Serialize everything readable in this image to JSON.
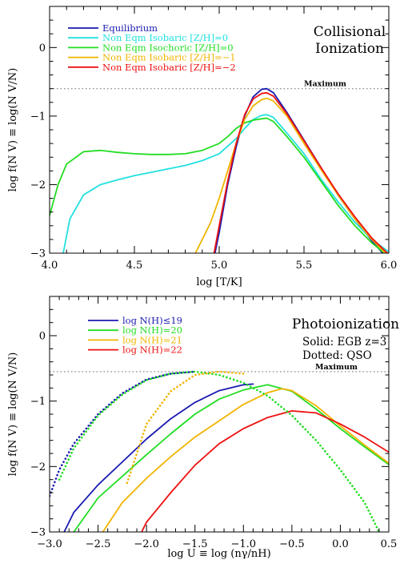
{
  "chart_data": [
    {
      "type": "line",
      "title": "Collisional Ionization",
      "title_lines": [
        "Collisional",
        "Ionization"
      ],
      "xlabel": "log [T/K]",
      "ylabel": "log  f(N V)  ≡  log(N V/N)",
      "xlim": [
        4.0,
        6.0
      ],
      "ylim": [
        -3.0,
        0.6
      ],
      "xticks": [
        4.0,
        4.5,
        5.0,
        5.5,
        6.0
      ],
      "xtick_labels": [
        "4.0",
        "4.5",
        "5.0",
        "5.5",
        "6.0"
      ],
      "yticks": [
        -3,
        -2,
        -1,
        0
      ],
      "ytick_labels": [
        "−3",
        "−2",
        "−1",
        "0"
      ],
      "legend_position": "top-left",
      "reference_line": {
        "y": -0.6,
        "label": "Maximum"
      },
      "series": [
        {
          "name": "Equilibrium",
          "color": "#1a1ab0",
          "dash": "solid",
          "x": [
            4.95,
            5.0,
            5.05,
            5.1,
            5.15,
            5.2,
            5.25,
            5.28,
            5.32,
            5.4,
            5.5,
            5.6,
            5.7,
            5.8,
            5.9,
            6.0
          ],
          "y": [
            -3.3,
            -2.7,
            -2.0,
            -1.45,
            -1.0,
            -0.72,
            -0.61,
            -0.6,
            -0.66,
            -0.95,
            -1.35,
            -1.75,
            -2.15,
            -2.5,
            -2.82,
            -3.1
          ]
        },
        {
          "name": "Non Eqm Isobaric  [Z/H]=0",
          "color": "#22e0e0",
          "dash": "solid",
          "x": [
            4.08,
            4.12,
            4.2,
            4.3,
            4.4,
            4.5,
            4.6,
            4.7,
            4.8,
            4.9,
            5.0,
            5.1,
            5.15,
            5.2,
            5.25,
            5.28,
            5.32,
            5.4,
            5.5,
            5.6,
            5.7,
            5.8,
            5.9,
            6.0
          ],
          "y": [
            -3.0,
            -2.5,
            -2.15,
            -2.0,
            -1.93,
            -1.87,
            -1.82,
            -1.77,
            -1.72,
            -1.65,
            -1.55,
            -1.33,
            -1.18,
            -1.05,
            -0.99,
            -0.98,
            -1.02,
            -1.25,
            -1.55,
            -1.92,
            -2.25,
            -2.55,
            -2.8,
            -2.98
          ]
        },
        {
          "name": "Non Eqm Isochoric  [Z/H]=0",
          "color": "#22dd22",
          "dash": "solid",
          "x": [
            4.0,
            4.05,
            4.1,
            4.2,
            4.3,
            4.4,
            4.5,
            4.6,
            4.7,
            4.8,
            4.9,
            5.0,
            5.05,
            5.1,
            5.15,
            5.2,
            5.25,
            5.28,
            5.32,
            5.4,
            5.5,
            5.6,
            5.7,
            5.8,
            5.9,
            6.0
          ],
          "y": [
            -2.45,
            -2.0,
            -1.7,
            -1.52,
            -1.5,
            -1.53,
            -1.55,
            -1.56,
            -1.56,
            -1.55,
            -1.5,
            -1.4,
            -1.3,
            -1.18,
            -1.1,
            -1.06,
            -1.04,
            -1.03,
            -1.08,
            -1.3,
            -1.6,
            -1.95,
            -2.3,
            -2.6,
            -2.85,
            -3.05
          ]
        },
        {
          "name": "Non Eqm Isobaric  [Z/H]=−1",
          "color": "#f0b400",
          "dash": "solid",
          "x": [
            4.86,
            4.9,
            4.95,
            5.0,
            5.05,
            5.1,
            5.15,
            5.2,
            5.25,
            5.28,
            5.32,
            5.4,
            5.5,
            5.6,
            5.7,
            5.8,
            5.9,
            6.0
          ],
          "y": [
            -3.0,
            -2.8,
            -2.55,
            -2.2,
            -1.8,
            -1.4,
            -1.05,
            -0.85,
            -0.76,
            -0.74,
            -0.78,
            -1.0,
            -1.4,
            -1.78,
            -2.15,
            -2.5,
            -2.8,
            -3.05
          ]
        },
        {
          "name": "Non Eqm Isobaric  [Z/H]=−2",
          "color": "#ee1111",
          "dash": "solid",
          "x": [
            4.97,
            5.0,
            5.05,
            5.1,
            5.15,
            5.2,
            5.25,
            5.28,
            5.32,
            5.4,
            5.5,
            5.6,
            5.7,
            5.8,
            5.9,
            6.0
          ],
          "y": [
            -3.0,
            -2.6,
            -1.95,
            -1.4,
            -0.98,
            -0.75,
            -0.67,
            -0.66,
            -0.71,
            -0.97,
            -1.36,
            -1.75,
            -2.13,
            -2.47,
            -2.78,
            -3.02
          ]
        }
      ]
    },
    {
      "type": "line",
      "title": "Photoionization",
      "subtitle_lines": [
        "Solid:  EGB z=3",
        "Dotted: QSO"
      ],
      "xlabel": "log U  ≡  log (nγ/nH)",
      "ylabel": "log  f(N V)  ≡  log(N V/N)",
      "xlim": [
        -3.0,
        0.5
      ],
      "ylim": [
        -3.0,
        0.6
      ],
      "xticks": [
        -3.0,
        -2.5,
        -2.0,
        -1.5,
        -1.0,
        -0.5,
        0.0,
        0.5
      ],
      "xtick_labels": [
        "−3.0",
        "−2.5",
        "−2.0",
        "−1.5",
        "−1.0",
        "−0.5",
        "0.0",
        "0.5"
      ],
      "yticks": [
        -3,
        -2,
        -1,
        0
      ],
      "ytick_labels": [
        "−3",
        "−2",
        "−1",
        "0"
      ],
      "legend_position": "top-left",
      "reference_line": {
        "y": -0.55,
        "label": "Maximum"
      },
      "series": [
        {
          "name": "log N(H)≤19",
          "color": "#1a1ab0",
          "dash": "solid",
          "x": [
            -2.85,
            -2.75,
            -2.5,
            -2.25,
            -2.0,
            -1.75,
            -1.5,
            -1.25,
            -1.0,
            -0.9
          ],
          "y": [
            -3.0,
            -2.7,
            -2.28,
            -1.93,
            -1.58,
            -1.27,
            -1.02,
            -0.84,
            -0.75,
            -0.74
          ]
        },
        {
          "name": "log N(H)=20",
          "color": "#22dd22",
          "dash": "solid",
          "x": [
            -2.75,
            -2.5,
            -2.25,
            -2.0,
            -1.75,
            -1.5,
            -1.25,
            -1.0,
            -0.75,
            -0.5,
            -0.25,
            0.0,
            0.25,
            0.5
          ],
          "y": [
            -3.0,
            -2.48,
            -2.15,
            -1.82,
            -1.5,
            -1.2,
            -0.97,
            -0.83,
            -0.75,
            -0.85,
            -1.12,
            -1.42,
            -1.7,
            -1.97
          ]
        },
        {
          "name": "log N(H)=21",
          "color": "#f0b400",
          "dash": "solid",
          "x": [
            -2.45,
            -2.25,
            -2.0,
            -1.75,
            -1.5,
            -1.25,
            -1.0,
            -0.75,
            -0.6,
            -0.5,
            -0.25,
            0.0,
            0.25,
            0.5
          ],
          "y": [
            -3.0,
            -2.55,
            -2.18,
            -1.85,
            -1.55,
            -1.3,
            -1.05,
            -0.87,
            -0.81,
            -0.84,
            -1.07,
            -1.38,
            -1.67,
            -1.95
          ]
        },
        {
          "name": "log N(H)=22",
          "color": "#ee1111",
          "dash": "solid",
          "x": [
            -2.05,
            -2.0,
            -1.75,
            -1.5,
            -1.25,
            -1.0,
            -0.75,
            -0.5,
            -0.25,
            0.0,
            0.25,
            0.5
          ],
          "y": [
            -3.0,
            -2.85,
            -2.4,
            -1.98,
            -1.65,
            -1.42,
            -1.25,
            -1.15,
            -1.18,
            -1.35,
            -1.55,
            -1.78
          ]
        },
        {
          "name": "log N(H)≤19 (QSO)",
          "color": "#1a1ab0",
          "dash": "dotted",
          "x": [
            -3.0,
            -2.9,
            -2.75,
            -2.5,
            -2.25,
            -2.0,
            -1.75,
            -1.5
          ],
          "y": [
            -2.45,
            -2.05,
            -1.65,
            -1.2,
            -0.88,
            -0.67,
            -0.58,
            -0.55
          ]
        },
        {
          "name": "log N(H)=20 (QSO)",
          "color": "#22dd22",
          "dash": "dotted",
          "x": [
            -2.9,
            -2.75,
            -2.5,
            -2.25,
            -2.0,
            -1.75,
            -1.5,
            -1.25,
            -1.0,
            -0.75,
            -0.5,
            -0.25,
            0.0,
            0.25,
            0.4
          ],
          "y": [
            -2.2,
            -1.72,
            -1.22,
            -0.9,
            -0.68,
            -0.58,
            -0.55,
            -0.6,
            -0.72,
            -0.92,
            -1.22,
            -1.6,
            -2.05,
            -2.55,
            -3.0
          ]
        },
        {
          "name": "log N(H)=21 (QSO)",
          "color": "#f0b400",
          "dash": "dotted",
          "x": [
            -2.2,
            -2.0,
            -1.75,
            -1.5,
            -1.25,
            -1.0
          ],
          "y": [
            -2.25,
            -1.35,
            -0.85,
            -0.6,
            -0.55,
            -0.58
          ]
        }
      ]
    }
  ]
}
